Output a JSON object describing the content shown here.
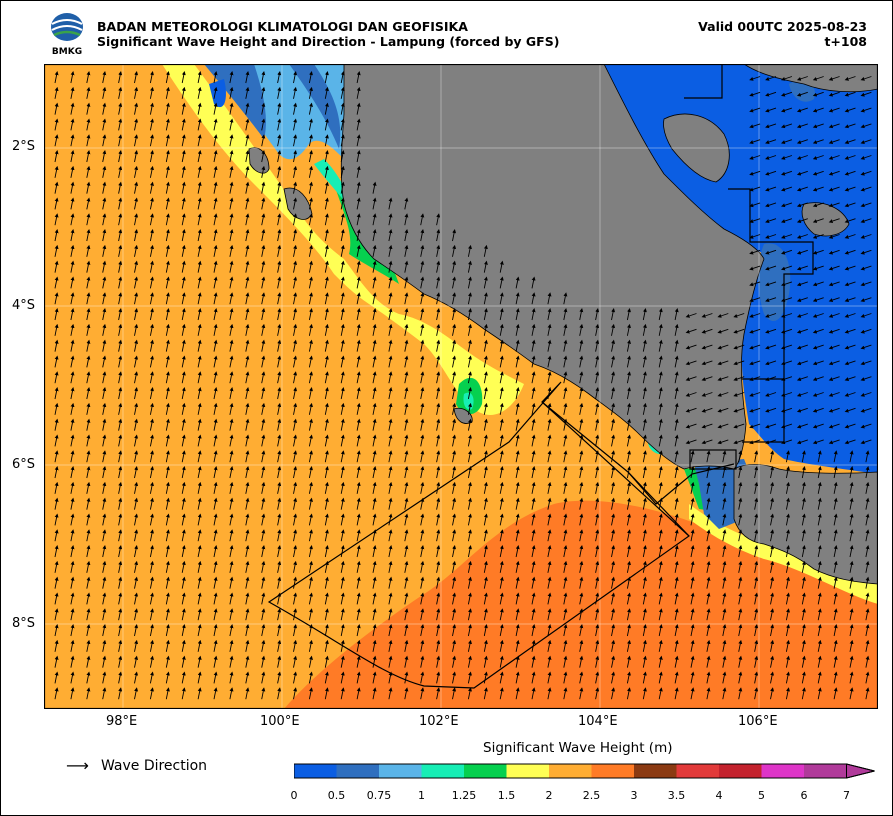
{
  "header": {
    "agency": "BADAN METEOROLOGI KLIMATOLOGI DAN GEOFISIKA",
    "product": "Significant Wave Height and Direction - Lampung (forced by GFS)",
    "valid": "Valid 00UTC 2025-08-23",
    "lead": "t+108",
    "logo_text": "BMKG"
  },
  "map": {
    "lat_labels": [
      "2°S",
      "4°S",
      "6°S",
      "8°S"
    ],
    "lon_labels": [
      "98°E",
      "100°E",
      "102°E",
      "104°E",
      "106°E"
    ],
    "extent": {
      "lon_min": 97.0,
      "lon_max": 107.5,
      "lat_min": -9.0,
      "lat_max": -1.0
    },
    "land_color": "#808080",
    "grid": true
  },
  "legend": {
    "direction_label": "Wave Direction",
    "colorbar_title": "Significant Wave Height (m)",
    "ticks": [
      "0",
      "0.5",
      "0.75",
      "1",
      "1.25",
      "1.5",
      "2",
      "2.5",
      "3",
      "3.5",
      "4",
      "5",
      "6",
      "7"
    ],
    "colors": [
      "#0b5ee3",
      "#2f6fbf",
      "#5ab4e8",
      "#17eeb5",
      "#06d04f",
      "#ffff55",
      "#ffad33",
      "#ff7b26",
      "#8b3a12",
      "#e23a3a",
      "#c4222e",
      "#de35c8",
      "#b03a9a"
    ],
    "extend_color": "#b03a9a"
  }
}
